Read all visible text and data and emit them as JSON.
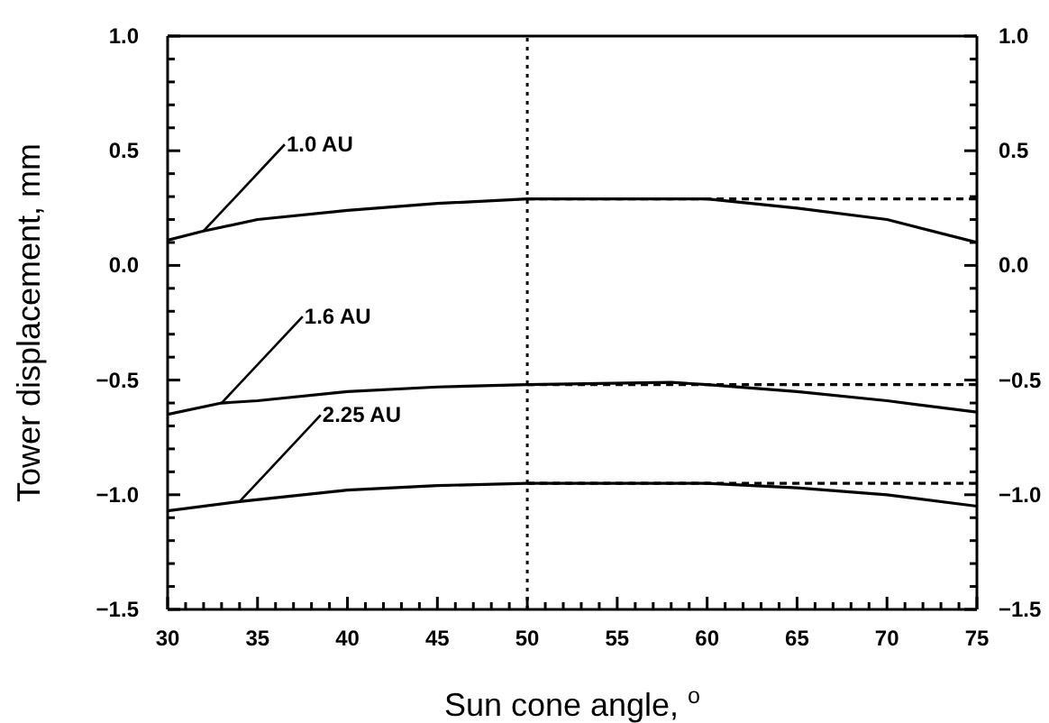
{
  "chart_data": {
    "type": "line",
    "xlabel": "Sun cone angle, $^{o}$",
    "ylabel": "Tower displacement, mm",
    "xlim": [
      30,
      75
    ],
    "xticks": [
      30,
      {
        "value": 31,
        "label": null
      },
      {
        "value": 32,
        "label": null
      },
      {
        "value": 33,
        "label": null
      },
      {
        "value": 34,
        "label": null
      },
      35,
      {
        "value": 36,
        "label": null
      },
      {
        "value": 37,
        "label": null
      },
      {
        "value": 38,
        "label": null
      },
      {
        "value": 39,
        "label": null
      },
      40,
      {
        "value": 41,
        "label": null
      },
      {
        "value": 42,
        "label": null
      },
      {
        "value": 43,
        "label": null
      },
      {
        "value": 44,
        "label": null
      },
      45,
      {
        "value": 46,
        "label": null
      },
      {
        "value": 47,
        "label": null
      },
      {
        "value": 48,
        "label": null
      },
      {
        "value": 49,
        "label": null
      },
      50,
      {
        "value": 51,
        "label": null
      },
      {
        "value": 52,
        "label": null
      },
      {
        "value": 53,
        "label": null
      },
      {
        "value": 54,
        "label": null
      },
      55,
      {
        "value": 56,
        "label": null
      },
      {
        "value": 57,
        "label": null
      },
      {
        "value": 58,
        "label": null
      },
      {
        "value": 59,
        "label": null
      },
      60,
      {
        "value": 61,
        "label": null
      },
      {
        "value": 62,
        "label": null
      },
      {
        "value": 63,
        "label": null
      },
      {
        "value": 64,
        "label": null
      },
      65,
      {
        "value": 66,
        "label": null
      },
      {
        "value": 67,
        "label": null
      },
      {
        "value": 68,
        "label": null
      },
      {
        "value": 69,
        "label": null
      },
      70,
      {
        "value": 71,
        "label": null
      },
      {
        "value": 72,
        "label": null
      },
      {
        "value": 73,
        "label": null
      },
      {
        "value": 74,
        "label": null
      },
      75
    ],
    "ylim": [
      -1.5,
      1.0
    ],
    "yticks": [
      {
        "value": -1.5,
        "label": "−1.5"
      },
      {
        "value": -1.4,
        "label": null
      },
      {
        "value": -1.3,
        "label": null
      },
      {
        "value": -1.2,
        "label": null
      },
      {
        "value": -1.1,
        "label": null
      },
      {
        "value": -1.0,
        "label": "−1.0"
      },
      {
        "value": -0.9,
        "label": null
      },
      {
        "value": -0.8,
        "label": null
      },
      {
        "value": -0.7,
        "label": null
      },
      {
        "value": -0.6,
        "label": null
      },
      {
        "value": -0.5,
        "label": "−0.5"
      },
      {
        "value": -0.4,
        "label": null
      },
      {
        "value": -0.3,
        "label": null
      },
      {
        "value": -0.2,
        "label": null
      },
      {
        "value": -0.1,
        "label": null
      },
      {
        "value": 0,
        "label": "0.0"
      },
      {
        "value": 0.1,
        "label": null
      },
      {
        "value": 0.2,
        "label": null
      },
      {
        "value": 0.3,
        "label": null
      },
      {
        "value": 0.4,
        "label": null
      },
      {
        "value": 0.5,
        "label": "0.5"
      },
      {
        "value": 0.6,
        "label": null
      },
      {
        "value": 0.7,
        "label": null
      },
      {
        "value": 0.8,
        "label": null
      },
      {
        "value": 0.9,
        "label": null
      },
      {
        "value": 1.0,
        "label": "1.0"
      }
    ],
    "y2lim": [
      -1.5,
      1.0
    ],
    "y2ticks": [
      {
        "value": -1.5,
        "label": "−1.5"
      },
      {
        "value": -1.4,
        "label": null
      },
      {
        "value": -1.3,
        "label": null
      },
      {
        "value": -1.2,
        "label": null
      },
      {
        "value": -1.1,
        "label": null
      },
      {
        "value": -1.0,
        "label": "−1.0"
      },
      {
        "value": -0.9,
        "label": null
      },
      {
        "value": -0.8,
        "label": null
      },
      {
        "value": -0.7,
        "label": null
      },
      {
        "value": -0.6,
        "label": null
      },
      {
        "value": -0.5,
        "label": "−0.5"
      },
      {
        "value": -0.4,
        "label": null
      },
      {
        "value": -0.3,
        "label": null
      },
      {
        "value": -0.2,
        "label": null
      },
      {
        "value": -0.1,
        "label": null
      },
      {
        "value": 0,
        "label": "0.0"
      },
      {
        "value": 0.1,
        "label": null
      },
      {
        "value": 0.2,
        "label": null
      },
      {
        "value": 0.3,
        "label": null
      },
      {
        "value": 0.4,
        "label": null
      },
      {
        "value": 0.5,
        "label": "0.5"
      },
      {
        "value": 0.6,
        "label": null
      },
      {
        "value": 0.7,
        "label": null
      },
      {
        "value": 0.8,
        "label": null
      },
      {
        "value": 0.9,
        "label": null
      },
      {
        "value": 1.0,
        "label": "1.0"
      }
    ],
    "grid": false,
    "marker": "none",
    "series": [
      {
        "color": "#000000",
        "line_style": "solid",
        "x": [
          30,
          32,
          35,
          40,
          45,
          50,
          60,
          65,
          70,
          75
        ],
        "values": [
          0.11,
          0.15,
          0.2,
          0.24,
          0.27,
          0.29,
          0.29,
          0.25,
          0.2,
          0.1
        ]
      },
      {
        "color": "#000000",
        "line_style": "solid",
        "x": [
          30,
          33,
          35,
          40,
          45,
          50,
          58,
          60,
          65,
          70,
          75
        ],
        "values": [
          -0.65,
          -0.6,
          -0.59,
          -0.55,
          -0.53,
          -0.52,
          -0.51,
          -0.52,
          -0.55,
          -0.59,
          -0.64
        ]
      },
      {
        "color": "#000000",
        "line_style": "solid",
        "x": [
          30,
          34,
          40,
          45,
          50,
          60,
          65,
          70,
          75
        ],
        "values": [
          -1.07,
          -1.03,
          -0.98,
          -0.96,
          -0.95,
          -0.95,
          -0.97,
          -1.0,
          -1.05
        ]
      },
      {
        "color": "#000000",
        "line_style": "dashed",
        "x": [
          50,
          75
        ],
        "values": [
          0.29,
          0.29
        ]
      },
      {
        "color": "#000000",
        "line_style": "dashed",
        "x": [
          50,
          75
        ],
        "values": [
          -0.52,
          -0.52
        ]
      },
      {
        "color": "#000000",
        "line_style": "dashed",
        "x": [
          50,
          75
        ],
        "values": [
          -0.95,
          -0.95
        ]
      }
    ],
    "ref_lines": [
      {
        "axis": "x",
        "value": 50,
        "color": "#000000",
        "line_style": "dotted"
      }
    ],
    "annotations": [
      {
        "text": "1.0 AU",
        "x": 32,
        "y": 0.15
      },
      {
        "text": "1.6 AU",
        "x": 33,
        "y": -0.6
      },
      {
        "text": "2.25 AU",
        "x": 34,
        "y": -1.03
      }
    ]
  }
}
